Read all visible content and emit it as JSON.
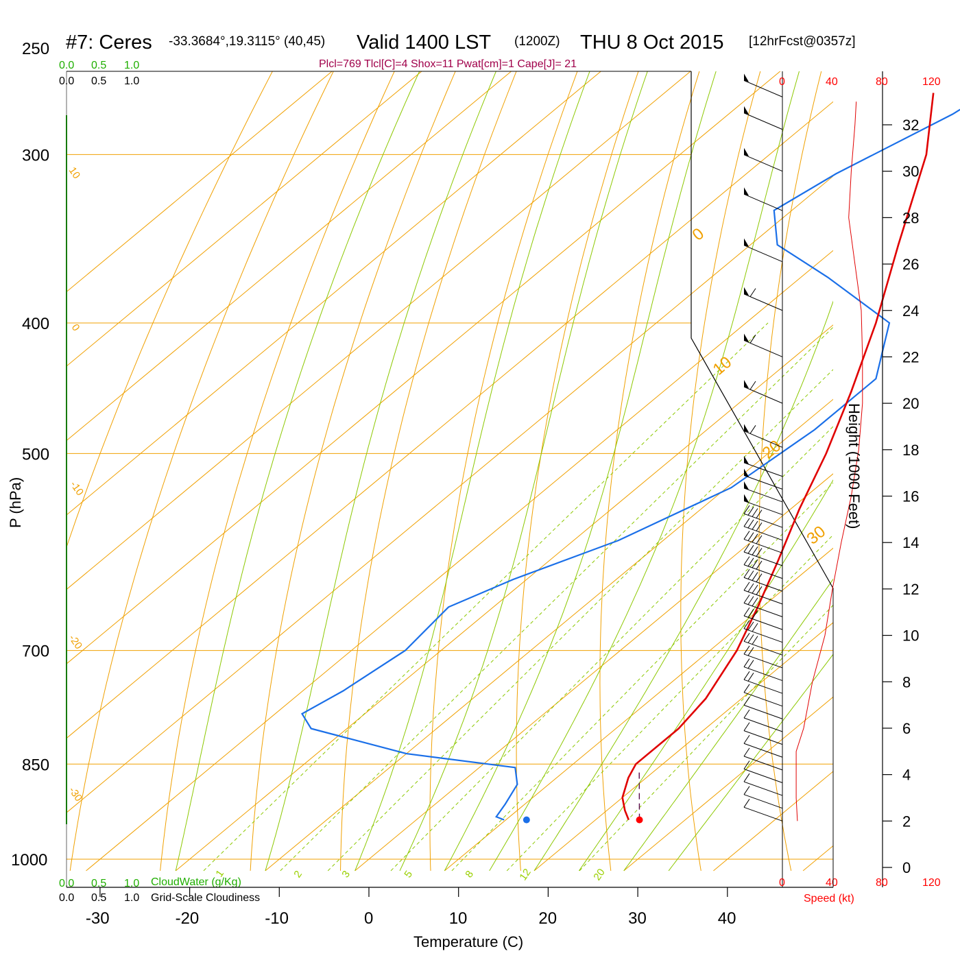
{
  "header": {
    "station": "#7: Ceres",
    "coords": "-33.3684°,19.3115° (40,45)",
    "valid": "Valid 1400 LST",
    "utc": "(1200Z)",
    "date": "THU 8 Oct 2015",
    "forecast": "[12hrFcst@0357z]"
  },
  "params_line": "Plcl=769 Tlcl[C]=4 Shox=11 Pwat[cm]=1 Cape[J]= 21",
  "cloud_scale": {
    "green_ticks": [
      "0.0",
      "0.5",
      "1.0"
    ],
    "black_ticks": [
      "0.0",
      "0.5",
      "1.0"
    ],
    "cloudwater_label": "CloudWater (g/Kg)",
    "cloudiness_label": "Grid-Scale Cloudiness"
  },
  "axes": {
    "xlabel": "Temperature (C)",
    "ylabel": "P (hPa)",
    "height_label": "Height (1000 Feet)",
    "speed_label": "Speed (kt)",
    "x_ticks": [
      "-30",
      "-20",
      "-10",
      "0",
      "10",
      "20",
      "30",
      "40"
    ],
    "p_ticks": [
      "250",
      "300",
      "400",
      "500",
      "700",
      "850",
      "1000"
    ],
    "height_ticks": [
      "0",
      "2",
      "4",
      "6",
      "8",
      "10",
      "12",
      "14",
      "16",
      "18",
      "20",
      "22",
      "24",
      "26",
      "28",
      "30",
      "32"
    ],
    "speed_ticks": [
      "0",
      "40",
      "80",
      "120"
    ]
  },
  "isotherm_labels": [
    "10",
    "0",
    "-10",
    "-20",
    "-30",
    "0",
    "10",
    "20",
    "30"
  ],
  "mixing_ratio_labels": [
    "1",
    "2",
    "3",
    "5",
    "8",
    "12",
    "20"
  ],
  "colors": {
    "temperature": "#e00000",
    "dewpoint": "#1a6fe8",
    "isotherm": "#f0a000",
    "adiabat": "#8cc800",
    "cloudwater": "#1fae00",
    "parcel": "#5a0a4a",
    "params": "#a0004a",
    "speed": "#ff0000"
  },
  "chart_data": {
    "type": "line",
    "subtype": "skew-T log-P sounding",
    "xlim": [
      -34,
      46
    ],
    "plim": [
      1020,
      250
    ],
    "temperature_profile": [
      {
        "p": 935,
        "t": 23.7
      },
      {
        "p": 920,
        "t": 22.0
      },
      {
        "p": 900,
        "t": 20.0
      },
      {
        "p": 870,
        "t": 18.0
      },
      {
        "p": 850,
        "t": 17.0
      },
      {
        "p": 820,
        "t": 17.0
      },
      {
        "p": 800,
        "t": 17.0
      },
      {
        "p": 760,
        "t": 16.0
      },
      {
        "p": 700,
        "t": 13.0
      },
      {
        "p": 650,
        "t": 9.5
      },
      {
        "p": 600,
        "t": 5.5
      },
      {
        "p": 550,
        "t": 1.0
      },
      {
        "p": 500,
        "t": -3.5
      },
      {
        "p": 450,
        "t": -9.0
      },
      {
        "p": 400,
        "t": -15.5
      },
      {
        "p": 350,
        "t": -23.5
      },
      {
        "p": 300,
        "t": -32.5
      },
      {
        "p": 270,
        "t": -40.0
      }
    ],
    "dewpoint_profile": [
      {
        "p": 935,
        "t": 9.8
      },
      {
        "p": 930,
        "t": 8.5
      },
      {
        "p": 910,
        "t": 7.8
      },
      {
        "p": 880,
        "t": 6.5
      },
      {
        "p": 855,
        "t": 4.0
      },
      {
        "p": 835,
        "t": -10.0
      },
      {
        "p": 800,
        "t": -24.0
      },
      {
        "p": 780,
        "t": -27.0
      },
      {
        "p": 750,
        "t": -25.5
      },
      {
        "p": 700,
        "t": -24.0
      },
      {
        "p": 650,
        "t": -25.0
      },
      {
        "p": 620,
        "t": -21.5
      },
      {
        "p": 580,
        "t": -15.0
      },
      {
        "p": 530,
        "t": -9.5
      },
      {
        "p": 480,
        "t": -8.0
      },
      {
        "p": 440,
        "t": -8.0
      },
      {
        "p": 400,
        "t": -14.0
      },
      {
        "p": 370,
        "t": -27.0
      },
      {
        "p": 350,
        "t": -37.0
      },
      {
        "p": 330,
        "t": -42.0
      },
      {
        "p": 310,
        "t": -40.0
      },
      {
        "p": 280,
        "t": -35.0
      },
      {
        "p": 270,
        "t": -34.0
      }
    ],
    "surface": {
      "p": 935,
      "t": 24.9,
      "td": 12.3
    },
    "parcel_dashed": [
      {
        "p": 935,
        "t": 24.9
      },
      {
        "p": 860,
        "t": 18.3
      }
    ],
    "wind_speed_profile_kt": [
      {
        "height_kft": 2.0,
        "speed": 12
      },
      {
        "height_kft": 3.0,
        "speed": 11
      },
      {
        "height_kft": 4.0,
        "speed": 11
      },
      {
        "height_kft": 5.0,
        "speed": 11
      },
      {
        "height_kft": 6.0,
        "speed": 17
      },
      {
        "height_kft": 8.0,
        "speed": 24
      },
      {
        "height_kft": 10.0,
        "speed": 34
      },
      {
        "height_kft": 12.0,
        "speed": 40
      },
      {
        "height_kft": 14.0,
        "speed": 47
      },
      {
        "height_kft": 16.0,
        "speed": 55
      },
      {
        "height_kft": 18.0,
        "speed": 61
      },
      {
        "height_kft": 20.0,
        "speed": 64
      },
      {
        "height_kft": 22.0,
        "speed": 64
      },
      {
        "height_kft": 24.0,
        "speed": 63
      },
      {
        "height_kft": 26.0,
        "speed": 58
      },
      {
        "height_kft": 28.0,
        "speed": 53
      },
      {
        "height_kft": 30.0,
        "speed": 55
      },
      {
        "height_kft": 32.0,
        "speed": 58
      },
      {
        "height_kft": 33.0,
        "speed": 59
      }
    ],
    "wind_barb_direction_deg": 290
  }
}
